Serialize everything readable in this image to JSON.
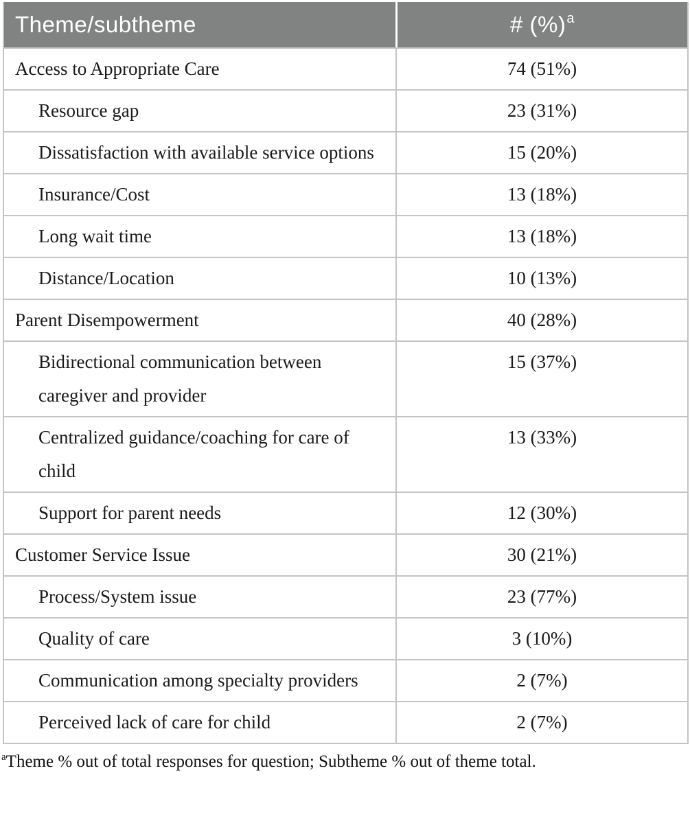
{
  "table": {
    "header": {
      "theme_label": "Theme/subtheme",
      "count_label": "# (%)",
      "count_superscript": "a"
    },
    "rows": [
      {
        "label": "Access to Appropriate Care",
        "value": "74 (51%)",
        "level": "theme"
      },
      {
        "label": "Resource gap",
        "value": "23 (31%)",
        "level": "subtheme"
      },
      {
        "label": "Dissatisfaction with available service options",
        "value": "15 (20%)",
        "level": "subtheme"
      },
      {
        "label": "Insurance/Cost",
        "value": "13 (18%)",
        "level": "subtheme"
      },
      {
        "label": "Long wait time",
        "value": "13 (18%)",
        "level": "subtheme"
      },
      {
        "label": "Distance/Location",
        "value": "10 (13%)",
        "level": "subtheme"
      },
      {
        "label": "Parent Disempowerment",
        "value": "40 (28%)",
        "level": "theme"
      },
      {
        "label": "Bidirectional communication between caregiver and provider",
        "value": "15 (37%)",
        "level": "subtheme"
      },
      {
        "label": "Centralized guidance/coaching for care of child",
        "value": "13 (33%)",
        "level": "subtheme"
      },
      {
        "label": "Support for parent needs",
        "value": "12 (30%)",
        "level": "subtheme"
      },
      {
        "label": "Customer Service Issue",
        "value": "30 (21%)",
        "level": "theme"
      },
      {
        "label": "Process/System issue",
        "value": "23 (77%)",
        "level": "subtheme"
      },
      {
        "label": "Quality of care",
        "value": "3 (10%)",
        "level": "subtheme"
      },
      {
        "label": "Communication among specialty providers",
        "value": "2 (7%)",
        "level": "subtheme"
      },
      {
        "label": "Perceived lack of care for child",
        "value": "2 (7%)",
        "level": "subtheme"
      }
    ],
    "footnote": {
      "superscript": "a",
      "text": "Theme % out of total responses for question; Subtheme % out of theme total."
    }
  },
  "colors": {
    "header_background": "#818282",
    "header_text": "#ffffff",
    "border": "#c4c4c4",
    "body_text": "#1a1a1a"
  }
}
